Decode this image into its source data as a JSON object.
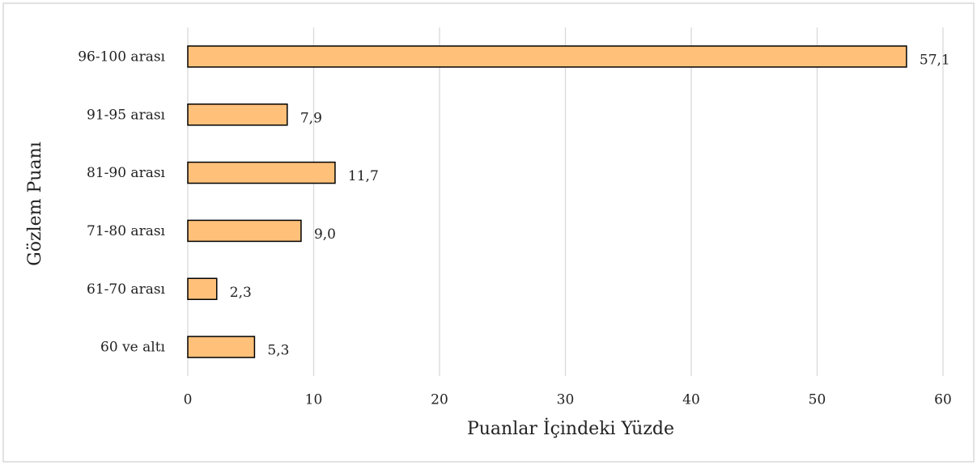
{
  "chart_data": {
    "type": "bar",
    "orientation": "horizontal",
    "x_label": "Puanlar İçindeki Yüzde",
    "y_label": "Gözlem Puanı",
    "categories": [
      "96-100 arası",
      "91-95 arası",
      "81-90 arası",
      "71-80 arası",
      "61-70 arası",
      "60 ve altı"
    ],
    "values": [
      57.1,
      7.9,
      11.7,
      9.0,
      2.3,
      5.3
    ],
    "value_labels": [
      "57,1",
      "7,9",
      "11,7",
      "9,0",
      "2,3",
      "5,3"
    ],
    "color": "#ffc07a",
    "xlim": [
      0,
      60
    ],
    "xticks": [
      0,
      10,
      20,
      30,
      40,
      50,
      60
    ],
    "grid": true
  }
}
